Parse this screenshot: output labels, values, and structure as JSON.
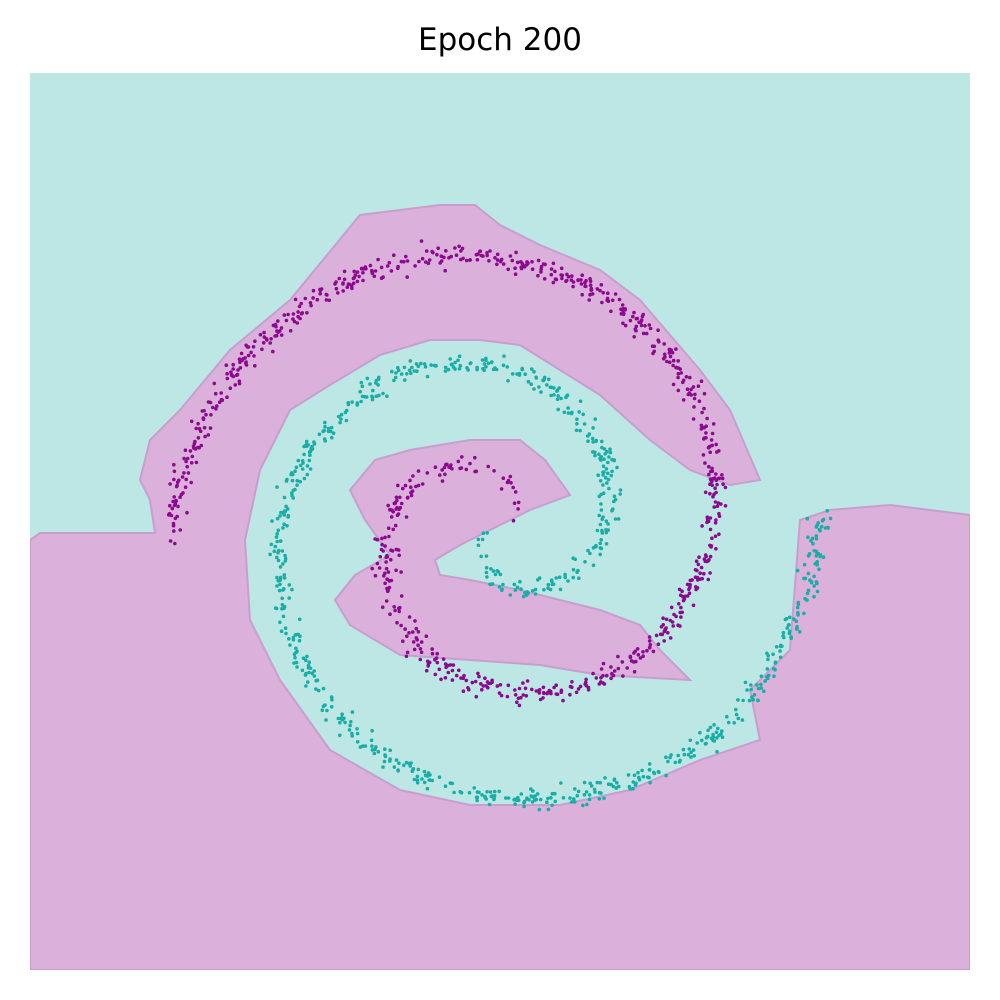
{
  "chart_data": {
    "type": "scatter",
    "title": "Epoch 200",
    "xlabel": "",
    "ylabel": "",
    "axes_visible": false,
    "grid": false,
    "legend": "none",
    "colors": {
      "class_a_points": "#1aada6",
      "class_b_points": "#8b0a8e",
      "class_a_region": "#bce7e4",
      "class_b_region": "#dbb0db",
      "boundary": "#8fd1cf"
    },
    "series": [
      {
        "class": "A",
        "shape": "two-armed spiral, outer arm and inner arm",
        "turns": 1.5
      },
      {
        "class": "B",
        "shape": "two-armed spiral, interleaved with class A",
        "turns": 1.5
      }
    ]
  }
}
